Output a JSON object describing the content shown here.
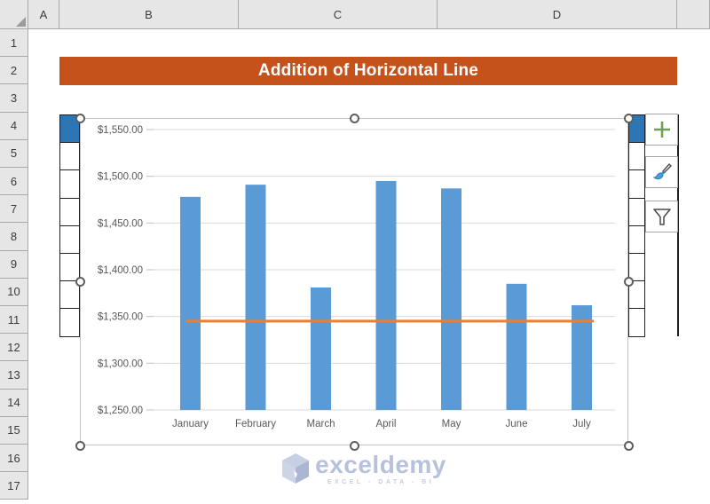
{
  "grid": {
    "select_all": "select-all",
    "columns": [
      {
        "label": "A"
      },
      {
        "label": "B"
      },
      {
        "label": "C"
      },
      {
        "label": "D"
      },
      {
        "label": ""
      }
    ],
    "rows": [
      "1",
      "2",
      "3",
      "4",
      "5",
      "6",
      "7",
      "8",
      "9",
      "10",
      "11",
      "12",
      "13",
      "14",
      "15",
      "16",
      "17"
    ]
  },
  "banner": {
    "title": "Addition of Horizontal Line",
    "bg": "#C5511B",
    "text_color": "#FFFFFF"
  },
  "data_table": {
    "visible_rows": 8,
    "header_fill": "#2E75B6",
    "cell_fill": "#FFFFFF"
  },
  "chart_buttons": [
    {
      "id": "chart-elements-button",
      "icon": "plus-icon",
      "color": "#6FA053"
    },
    {
      "id": "chart-styles-button",
      "icon": "brush-icon",
      "color": "#45A1DE"
    },
    {
      "id": "chart-filters-button",
      "icon": "funnel-icon",
      "color": "#4a4a4a"
    }
  ],
  "chart_data": {
    "type": "bar",
    "title": "",
    "categories": [
      "January",
      "February",
      "March",
      "April",
      "May",
      "June",
      "July"
    ],
    "series": [
      {
        "name": "",
        "values": [
          1478,
          1491,
          1381,
          1495,
          1487,
          1385,
          1362
        ],
        "color": "#5B9BD5"
      }
    ],
    "horizontal_line": {
      "value": 1345,
      "color": "#ED7D31"
    },
    "ylim": [
      1250,
      1550
    ],
    "ytick_step": 50,
    "y_tick_labels": [
      "$1,550.00",
      "$1,500.00",
      "$1,450.00",
      "$1,400.00",
      "$1,350.00",
      "$1,300.00",
      "$1,250.00"
    ],
    "xlabel": "",
    "ylabel": "",
    "grid": true,
    "legend": "none",
    "axis_label_color": "#595959",
    "gridline_color": "#D9D9D9"
  },
  "watermark": {
    "brand": "exceldemy",
    "tagline": "EXCEL - DATA - BI",
    "color": "#B7C1DB"
  }
}
